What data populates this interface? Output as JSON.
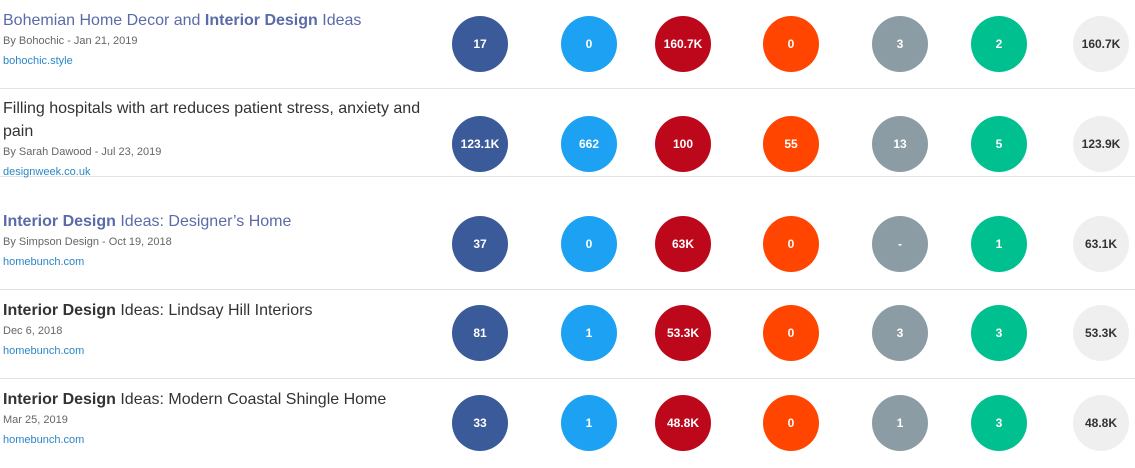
{
  "rows": [
    {
      "title_parts": [
        {
          "text": "Bohemian Home Decor and ",
          "bold": false
        },
        {
          "text": "Interior Design",
          "bold": true
        },
        {
          "text": " Ideas",
          "bold": false
        }
      ],
      "title_style": "link",
      "meta": "By Bohochic - Jan 21, 2019",
      "domain": "bohochic.style",
      "metrics": [
        "17",
        "0",
        "160.7K",
        "0",
        "3",
        "2",
        "160.7K"
      ]
    },
    {
      "title_parts": [
        {
          "text": "Filling hospitals with art reduces patient stress, anxiety and pain",
          "bold": false
        }
      ],
      "title_style": "plain",
      "meta": "By Sarah Dawood - Jul 23, 2019",
      "domain": "designweek.co.uk",
      "metrics": [
        "123.1K",
        "662",
        "100",
        "55",
        "13",
        "5",
        "123.9K"
      ]
    },
    {
      "title_parts": [
        {
          "text": "Interior Design",
          "bold": true
        },
        {
          "text": " Ideas: Designer’s Home",
          "bold": false
        }
      ],
      "title_style": "link",
      "meta": "By Simpson Design - Oct 19, 2018",
      "domain": "homebunch.com",
      "metrics": [
        "37",
        "0",
        "63K",
        "0",
        "-",
        "1",
        "63.1K"
      ]
    },
    {
      "title_parts": [
        {
          "text": "Interior Design",
          "bold": true
        },
        {
          "text": " Ideas: Lindsay Hill Interiors",
          "bold": false
        }
      ],
      "title_style": "plain",
      "meta": "Dec 6, 2018",
      "domain": "homebunch.com",
      "metrics": [
        "81",
        "1",
        "53.3K",
        "0",
        "3",
        "3",
        "53.3K"
      ]
    },
    {
      "title_parts": [
        {
          "text": "Interior Design",
          "bold": true
        },
        {
          "text": " Ideas: Modern Coastal Shingle Home",
          "bold": false
        }
      ],
      "title_style": "plain",
      "meta": "Mar 25, 2019",
      "domain": "homebunch.com",
      "metrics": [
        "33",
        "1",
        "48.8K",
        "0",
        "1",
        "3",
        "48.8K"
      ]
    }
  ],
  "metric_colors": [
    "#3b5a9a",
    "#1da1f2",
    "#bd081c",
    "#ff4500",
    "#8c9ca5",
    "#00c090",
    "#efefef"
  ]
}
